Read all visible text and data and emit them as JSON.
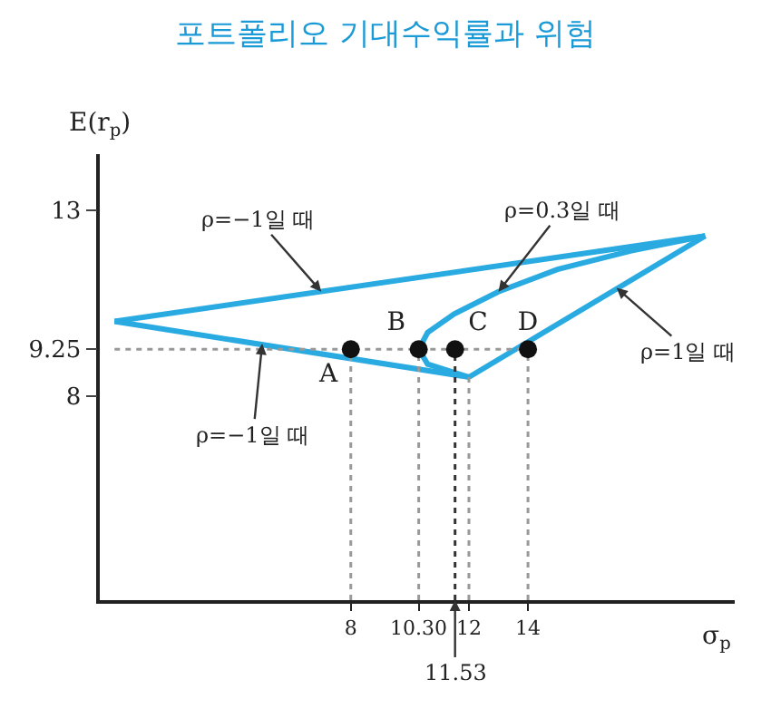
{
  "chart_data": {
    "type": "line",
    "title": "포트폴리오 기대수익률과 위험",
    "xlabel": "σ$_{p}$",
    "ylabel": "E(r$_{p}$)",
    "xlim": [
      -0.5,
      21
    ],
    "ylim": [
      2.5,
      14.5
    ],
    "xticks": [
      8,
      {
        "value": 10.3,
        "label": "10.30"
      },
      {
        "value": 11.53,
        "label": null
      },
      12,
      14
    ],
    "yticks": [
      8,
      9.25,
      13
    ],
    "legend": false,
    "series": [
      {
        "color": "#29abe2",
        "line_style": "solid",
        "x": [
          0,
          20
        ],
        "values": [
          10.0,
          12.3
        ]
      },
      {
        "color": "#29abe2",
        "line_style": "solid",
        "x": [
          0,
          12
        ],
        "values": [
          10.0,
          8.5
        ]
      },
      {
        "color": "#29abe2",
        "line_style": "solid",
        "x": [
          12,
          20
        ],
        "values": [
          8.5,
          12.3
        ]
      },
      {
        "color": "#29abe2",
        "line_style": "solid",
        "x": [
          12,
          10.6,
          10.3,
          10.6,
          11.5,
          13,
          15,
          17.5,
          20
        ],
        "values": [
          8.5,
          8.85,
          9.25,
          9.7,
          10.2,
          10.8,
          11.4,
          11.9,
          12.3
        ]
      },
      {
        "color": "#999999",
        "line_style": "dotted",
        "x": [
          0,
          14
        ],
        "values": [
          9.25,
          9.25
        ]
      },
      {
        "color": "#999999",
        "line_style": "dotted",
        "x": [
          8,
          8
        ],
        "values": [
          2.5,
          9.25
        ]
      },
      {
        "color": "#999999",
        "line_style": "dotted",
        "x": [
          10.3,
          10.3
        ],
        "values": [
          2.5,
          9.25
        ]
      },
      {
        "color": "#333333",
        "line_style": "dotted",
        "x": [
          11.53,
          11.53
        ],
        "values": [
          2.5,
          9.25
        ]
      },
      {
        "color": "#999999",
        "line_style": "dotted",
        "x": [
          12,
          12
        ],
        "values": [
          2.5,
          8.5
        ]
      },
      {
        "color": "#999999",
        "line_style": "dotted",
        "x": [
          14,
          14
        ],
        "values": [
          2.5,
          9.25
        ]
      },
      {
        "type": "scatter",
        "color": "#111111",
        "marker": "circle",
        "x": [
          8,
          10.3,
          11.53,
          14
        ],
        "values": [
          9.25,
          9.25,
          9.25,
          9.25
        ],
        "value_labels": [
          "A",
          "B",
          "C",
          "D"
        ]
      }
    ],
    "annotations": [
      {
        "text": "ρ=−1일 때",
        "x": 7,
        "y": 10.8
      },
      {
        "text": "ρ=0.3일 때",
        "x": 13,
        "y": 10.8
      },
      {
        "text": "ρ=−1일 때",
        "x": 5,
        "y": 9.4
      },
      {
        "text": "ρ=1일 때",
        "x": 17,
        "y": 10.9
      },
      {
        "text": "11.53",
        "x": 11.53,
        "y": 2.5
      }
    ]
  }
}
